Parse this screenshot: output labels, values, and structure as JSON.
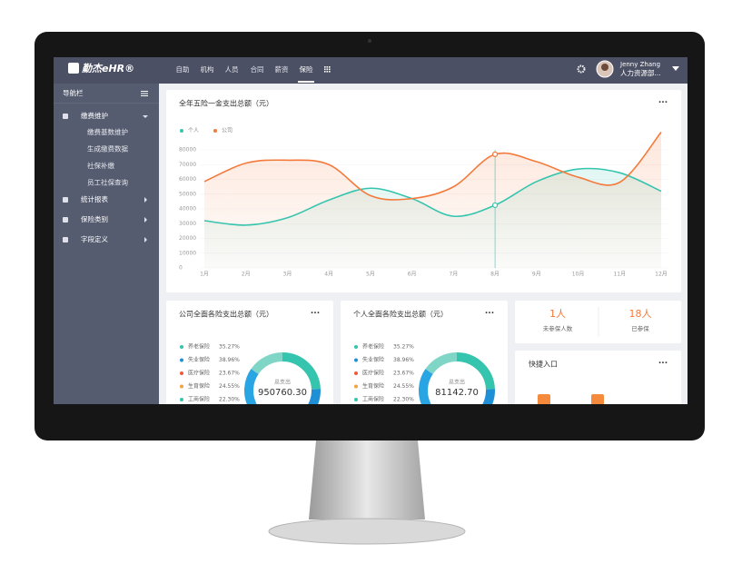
{
  "nav": {
    "logo": "勤杰eHR®",
    "items": [
      "自助",
      "机构",
      "人员",
      "合同",
      "薪资",
      "保险"
    ],
    "active": 5,
    "user": {
      "name": "Jenny Zhang",
      "dept": "人力资源部..."
    }
  },
  "sidebar": {
    "title": "导航栏",
    "menu": [
      {
        "label": "缴费维护",
        "children": [
          "缴费基数维护",
          "生成缴费数据",
          "社保补缴",
          "员工社保查询"
        ]
      },
      {
        "label": "统计报表"
      },
      {
        "label": "保险类别"
      },
      {
        "label": "字段定义"
      }
    ]
  },
  "main_chart": {
    "type": "line",
    "title": "全年五险一金支出总额（元）",
    "more": "···",
    "categories": [
      "1月",
      "2月",
      "3月",
      "4月",
      "5月",
      "6月",
      "7月",
      "8月",
      "9月",
      "10月",
      "11月",
      "12月"
    ],
    "series": [
      {
        "name": "个人",
        "color": "#35c4ad",
        "values": [
          32000,
          29000,
          34000,
          46000,
          54000,
          47000,
          35000,
          42500,
          58500,
          67000,
          64500,
          52000
        ]
      },
      {
        "name": "公司",
        "color": "#f47a3c",
        "values": [
          58500,
          71000,
          73000,
          70000,
          49000,
          47000,
          55000,
          77000,
          72000,
          61500,
          58000,
          92000
        ]
      }
    ],
    "ylim": [
      0,
      80000
    ],
    "yticks": [
      0,
      10000,
      20000,
      30000,
      40000,
      50000,
      60000,
      70000,
      80000
    ]
  },
  "company_card": {
    "title": "公司全面各险支出总额（元）",
    "more": "···",
    "total_label": "总支出",
    "total": "950760.30",
    "categories": [
      "养老保险",
      "失业保险",
      "医疗保险",
      "生育保险",
      "工商保险"
    ],
    "colors": [
      "#35c4ad",
      "#1f8fd6",
      "#f2593a",
      "#f5a13c",
      "#35c4ad"
    ],
    "values": [
      35.27,
      38.96,
      23.67,
      24.55,
      22.3
    ],
    "value_labels": [
      "35.27%",
      "38.96%",
      "23.67%",
      "24.55%",
      "22.30%"
    ]
  },
  "personal_card": {
    "title": "个人全面各险支出总额（元）",
    "more": "···",
    "total_label": "总支出",
    "total": "81142.70",
    "categories": [
      "养老保险",
      "失业保险",
      "医疗保险",
      "生育保险",
      "工商保险"
    ],
    "colors": [
      "#35c4ad",
      "#1f8fd6",
      "#f2593a",
      "#f5a13c",
      "#35c4ad"
    ],
    "values": [
      35.27,
      38.96,
      23.67,
      24.55,
      22.3
    ],
    "value_labels": [
      "35.27%",
      "38.96%",
      "23.67%",
      "24.55%",
      "22.30%"
    ]
  },
  "stats": {
    "items": [
      {
        "value": "1人",
        "label": "未参保人数"
      },
      {
        "value": "18人",
        "label": "已参保"
      }
    ]
  },
  "quick": {
    "title": "快捷入口",
    "more": "···"
  }
}
